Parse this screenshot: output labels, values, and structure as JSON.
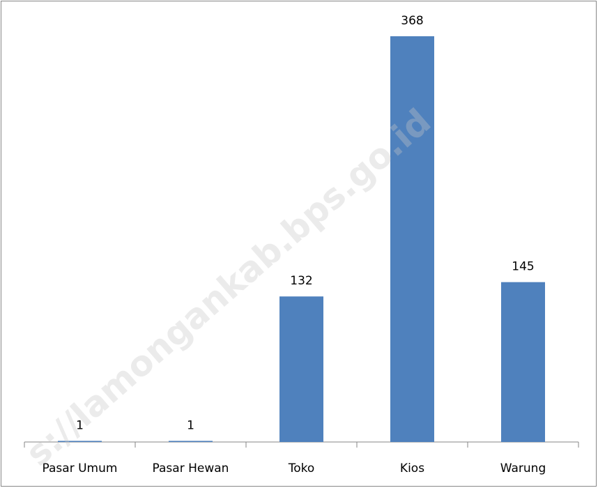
{
  "chart_data": {
    "type": "bar",
    "categories": [
      "Pasar Umum",
      "Pasar Hewan",
      "Toko",
      "Kios",
      "Warung"
    ],
    "values": [
      1,
      1,
      132,
      368,
      145
    ],
    "color": "#4f81bd",
    "watermark": "s://lamongankab.bps.go.id"
  }
}
